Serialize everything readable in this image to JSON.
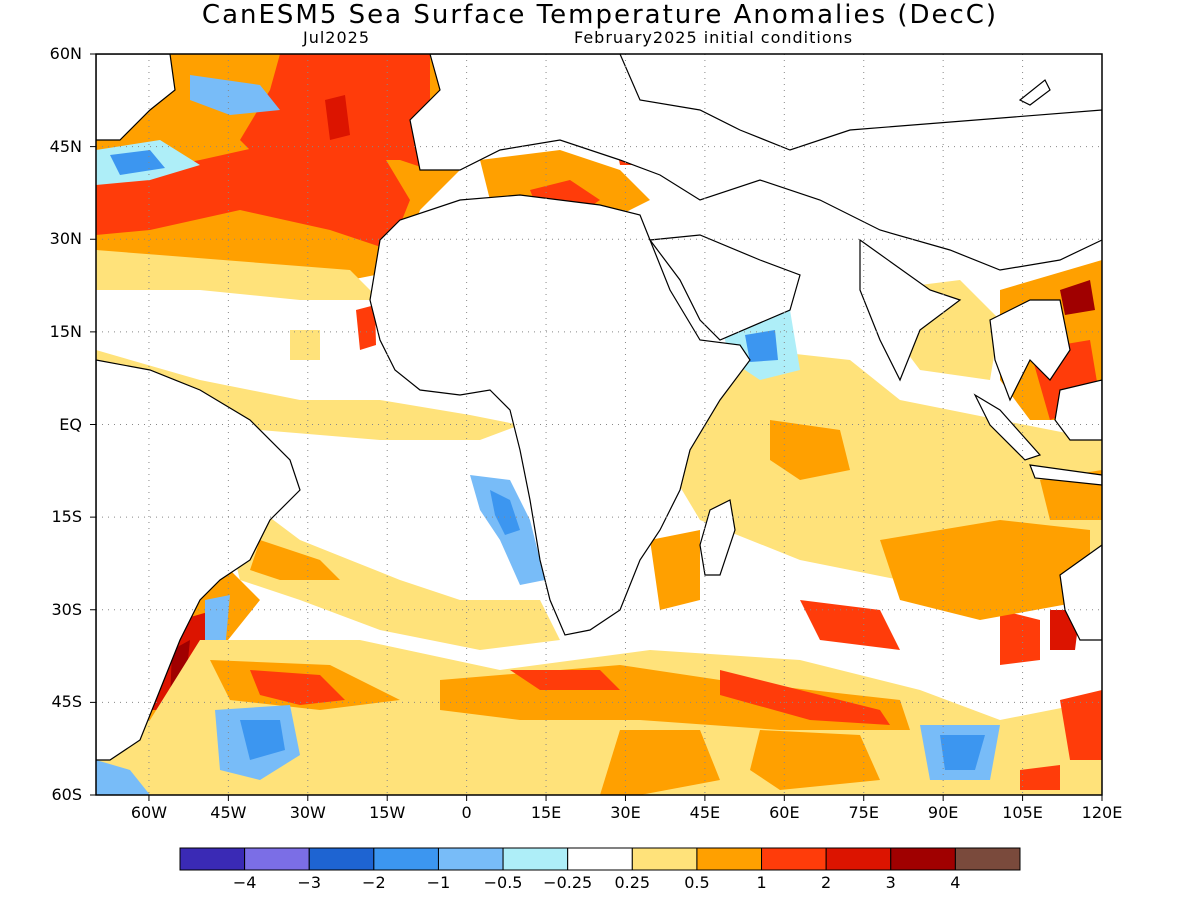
{
  "title": "CanESM5 Sea Surface Temperature Anomalies (DecC)",
  "subtitle_left": "Jul2025",
  "subtitle_right": "February2025 initial conditions",
  "map": {
    "lon_range": [
      -70,
      120
    ],
    "lat_range": [
      -60,
      60
    ],
    "lat_ticks": [
      "60N",
      "45N",
      "30N",
      "15N",
      "EQ",
      "15S",
      "30S",
      "45S",
      "60S"
    ],
    "lon_ticks": [
      "60W",
      "45W",
      "30W",
      "15W",
      "0",
      "15E",
      "30E",
      "45E",
      "60E",
      "75E",
      "90E",
      "105E",
      "120E"
    ],
    "gridlines": "dotted",
    "ocean_fill": "#ffffff",
    "land_fill": "#ffffff",
    "coast_color": "#000000"
  },
  "colorbar": {
    "colors": [
      "#3a2ab5",
      "#7b6ee6",
      "#1e64d2",
      "#3c96f0",
      "#78bcf8",
      "#aeeef8",
      "#ffffff",
      "#ffe27a",
      "#ffa000",
      "#ff3c0a",
      "#dc1400",
      "#a00000",
      "#7a4a3c"
    ],
    "labels": [
      "-4",
      "-3",
      "-2",
      "-1",
      "-0.5",
      "-0.25",
      "0.25",
      "0.5",
      "1",
      "2",
      "3",
      "4"
    ]
  }
}
